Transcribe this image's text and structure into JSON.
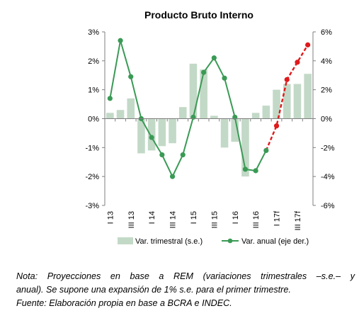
{
  "chart_data": {
    "type": "bar+line",
    "title": "Producto Bruto Interno",
    "categories": [
      "I 13",
      "II 13",
      "III 13",
      "IV 13",
      "I 14",
      "II 14",
      "III 14",
      "IV 14",
      "I 15",
      "II 15",
      "III 15",
      "IV 15",
      "I 16",
      "II 16",
      "III 16",
      "IV 16",
      "I 17f",
      "II 17f",
      "III 17f",
      "IV 17f"
    ],
    "tick_labels": [
      "I 13",
      "III 13",
      "I 14",
      "III 14",
      "I 15",
      "III 15",
      "I 16",
      "III 16",
      "I 17f",
      "III 17f"
    ],
    "tick_label_indices": [
      0,
      2,
      4,
      6,
      8,
      10,
      12,
      14,
      16,
      18
    ],
    "y_left": {
      "min": -3,
      "max": 3,
      "step": 1,
      "ticks": [
        "-3%",
        "-2%",
        "-1%",
        "0%",
        "1%",
        "2%",
        "3%"
      ]
    },
    "y_right": {
      "min": -6,
      "max": 6,
      "step": 2,
      "ticks": [
        "-6%",
        "-4%",
        "-2%",
        "0%",
        "2%",
        "4%",
        "6%"
      ]
    },
    "grid": false,
    "legend_position": "bottom",
    "series": [
      {
        "name": "Var. trimestral (s.e.)",
        "kind": "bar",
        "axis": "left",
        "color": "#c3d9c7",
        "values": [
          0.2,
          0.3,
          0.7,
          -1.2,
          -1.1,
          -0.95,
          -0.85,
          0.4,
          1.9,
          1.7,
          0.1,
          -1.0,
          -0.8,
          -2.0,
          0.2,
          0.45,
          1.0,
          1.2,
          1.2,
          1.55
        ]
      },
      {
        "name": "Var. anual (eje der.)",
        "kind": "line",
        "axis": "right",
        "color": "#3a9a55",
        "projection_color": "#e0191b",
        "projection_start_index": 15,
        "values": [
          1.4,
          5.4,
          2.9,
          0.0,
          -1.3,
          -2.5,
          -4.0,
          -2.5,
          0.1,
          3.2,
          4.2,
          2.8,
          0.1,
          -3.5,
          -3.6,
          -2.2,
          -0.5,
          2.7,
          3.9,
          5.1
        ]
      }
    ]
  },
  "note": {
    "line1": "Nota: Proyecciones en base a REM (variaciones trimestrales –s.e.– y",
    "line2": "anual). Se supone una expansión de 1% s.e. para el primer trimestre.",
    "line3": "Fuente: Elaboración propia en base a BCRA e INDEC."
  }
}
